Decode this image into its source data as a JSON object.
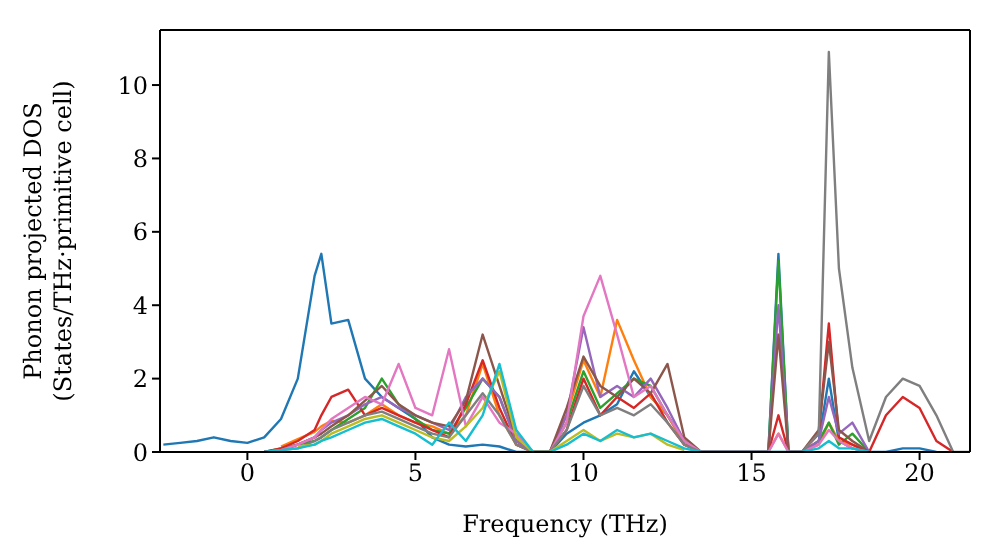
{
  "chart_data": {
    "type": "line",
    "xlabel": "Frequency (THz)",
    "ylabel": "Phonon projected DOS\n(States/THz·primitive cell)",
    "xlim": [
      -2.6,
      21.5
    ],
    "ylim": [
      0,
      11.5
    ],
    "xticks": [
      0,
      5,
      10,
      15,
      20
    ],
    "yticks": [
      0,
      2,
      4,
      6,
      8,
      10
    ],
    "grid": false,
    "legend": false,
    "marker": "none",
    "line_style": "solid",
    "x": [
      -2.5,
      -2,
      -1.5,
      -1,
      -0.5,
      0,
      0.5,
      1,
      1.5,
      2,
      2.2,
      2.5,
      3,
      3.5,
      4,
      4.5,
      5,
      5.5,
      6,
      6.5,
      7,
      7.5,
      8,
      8.5,
      9,
      9.5,
      10,
      10.5,
      11,
      11.5,
      12,
      12.5,
      13,
      13.5,
      14,
      14.5,
      15,
      15.5,
      15.8,
      16.1,
      16.5,
      17,
      17.3,
      17.6,
      18,
      18.5,
      19,
      19.5,
      20,
      20.5,
      21,
      21.5
    ],
    "series": [
      {
        "color": "#1f77b4",
        "values": [
          0.2,
          0.25,
          0.3,
          0.4,
          0.3,
          0.25,
          0.4,
          0.9,
          2.0,
          4.8,
          5.4,
          3.5,
          3.6,
          2.0,
          1.5,
          1.2,
          0.9,
          0.4,
          0.2,
          0.15,
          0.2,
          0.15,
          0,
          0,
          0,
          0.5,
          0.8,
          1.0,
          1.3,
          2.2,
          1.5,
          1.0,
          0.3,
          0,
          0,
          0,
          0,
          0,
          5.4,
          0,
          0,
          0.3,
          2.0,
          0.3,
          0.1,
          0,
          0,
          0.1,
          0.1,
          0,
          null,
          null
        ]
      },
      {
        "color": "#ff7f0e",
        "values": [
          null,
          null,
          null,
          null,
          null,
          null,
          null,
          0.15,
          0.35,
          0.55,
          0.7,
          0.85,
          0.8,
          1.0,
          1.3,
          1.0,
          0.8,
          0.7,
          0.5,
          1.0,
          2.4,
          1.0,
          0.2,
          0,
          0,
          1.0,
          2.5,
          1.5,
          3.6,
          2.5,
          1.5,
          1.0,
          0.2,
          0,
          0,
          0,
          0,
          0,
          0.5,
          0,
          0,
          0.2,
          0.8,
          0.3,
          0.2,
          0,
          null,
          null,
          null,
          null,
          null,
          null
        ]
      },
      {
        "color": "#2ca02c",
        "values": [
          null,
          null,
          null,
          null,
          null,
          null,
          0,
          0.1,
          0.2,
          0.3,
          0.4,
          0.6,
          0.9,
          1.2,
          2.0,
          1.3,
          0.9,
          0.6,
          0.5,
          1.2,
          2.0,
          1.5,
          0.3,
          0,
          0,
          0.8,
          2.2,
          1.2,
          1.6,
          2.0,
          1.8,
          1.0,
          0.3,
          0,
          0,
          0,
          0,
          0,
          5.2,
          0,
          0,
          0.3,
          0.8,
          0.2,
          0.5,
          0,
          null,
          null,
          null,
          null,
          null,
          null
        ]
      },
      {
        "color": "#d62728",
        "values": [
          null,
          null,
          null,
          null,
          null,
          null,
          0,
          0.1,
          0.3,
          0.6,
          1.0,
          1.5,
          1.7,
          1.0,
          1.2,
          1.0,
          0.8,
          0.6,
          0.4,
          1.3,
          2.5,
          1.2,
          0.2,
          0,
          0,
          0.6,
          2.0,
          1.0,
          1.5,
          1.2,
          1.6,
          0.8,
          0.2,
          0,
          0,
          0,
          0,
          0,
          1.0,
          0,
          0,
          0.5,
          3.5,
          0.4,
          0.2,
          0,
          1.0,
          1.5,
          1.2,
          0.3,
          0,
          null
        ]
      },
      {
        "color": "#9467bd",
        "values": [
          null,
          null,
          null,
          null,
          null,
          null,
          0,
          0.05,
          0.2,
          0.4,
          0.6,
          0.8,
          1.0,
          1.3,
          1.5,
          1.2,
          1.0,
          0.8,
          0.6,
          1.5,
          2.0,
          1.5,
          0.3,
          0,
          0,
          1.0,
          3.4,
          1.5,
          1.8,
          1.5,
          2.0,
          1.2,
          0.3,
          0,
          0,
          0,
          0,
          0,
          4.0,
          0,
          0,
          0.3,
          1.5,
          0.5,
          0.8,
          0,
          null,
          null,
          null,
          null,
          null,
          null
        ]
      },
      {
        "color": "#8c564b",
        "values": [
          null,
          null,
          null,
          null,
          null,
          null,
          0,
          0.05,
          0.2,
          0.4,
          0.5,
          0.7,
          1.0,
          1.4,
          1.8,
          1.3,
          1.0,
          0.8,
          0.7,
          1.4,
          3.2,
          1.8,
          0.4,
          0,
          0,
          1.2,
          2.6,
          1.8,
          1.5,
          2.0,
          1.6,
          2.4,
          0.4,
          0,
          0,
          0,
          0,
          0,
          3.2,
          0,
          0,
          0.6,
          3.0,
          0.6,
          0.3,
          0,
          null,
          null,
          null,
          null,
          null,
          null
        ]
      },
      {
        "color": "#e377c2",
        "values": [
          null,
          null,
          null,
          null,
          null,
          null,
          0,
          0.05,
          0.2,
          0.4,
          0.6,
          0.9,
          1.2,
          1.5,
          1.3,
          2.4,
          1.2,
          1.0,
          2.8,
          0.7,
          1.5,
          0.8,
          0.5,
          0,
          0,
          0.8,
          3.7,
          4.8,
          3.2,
          1.5,
          1.8,
          1.0,
          0.3,
          0,
          0,
          0,
          0,
          0,
          0.5,
          0,
          0,
          0.2,
          0.6,
          0.3,
          0.1,
          0,
          null,
          null,
          null,
          null,
          null,
          null
        ]
      },
      {
        "color": "#7f7f7f",
        "values": [
          null,
          null,
          null,
          null,
          null,
          null,
          0,
          0.05,
          0.1,
          0.3,
          0.4,
          0.6,
          0.8,
          1.0,
          1.1,
          0.9,
          0.7,
          0.5,
          0.4,
          1.0,
          1.6,
          1.0,
          0.2,
          0,
          0,
          0.6,
          1.8,
          1.0,
          1.2,
          1.0,
          1.3,
          0.8,
          0.2,
          0,
          0,
          0,
          0,
          0,
          0,
          0,
          0,
          0.5,
          10.9,
          5.0,
          2.3,
          0.3,
          1.5,
          2.0,
          1.8,
          1.0,
          0,
          0
        ]
      },
      {
        "color": "#bcbd22",
        "values": [
          null,
          null,
          null,
          null,
          null,
          null,
          null,
          null,
          0.15,
          0.2,
          0.3,
          0.5,
          0.7,
          0.9,
          1.0,
          0.8,
          0.6,
          0.4,
          0.3,
          0.7,
          1.2,
          2.2,
          0.4,
          0,
          0,
          0.3,
          0.6,
          0.3,
          0.5,
          0.4,
          0.5,
          0.2,
          0.05,
          null,
          null,
          null,
          null,
          null,
          null,
          null,
          null,
          null,
          null,
          null,
          null,
          null,
          null,
          null,
          null,
          null,
          null,
          null
        ]
      },
      {
        "color": "#17becf",
        "values": [
          null,
          null,
          null,
          null,
          null,
          null,
          0,
          0.05,
          0.1,
          0.2,
          0.3,
          0.4,
          0.6,
          0.8,
          0.9,
          0.7,
          0.5,
          0.2,
          0.8,
          0.3,
          1.0,
          2.4,
          0.6,
          0,
          0,
          0.2,
          0.5,
          0.3,
          0.6,
          0.4,
          0.5,
          0.3,
          0.1,
          0,
          0,
          0,
          0,
          0,
          0,
          0,
          0,
          0.1,
          0.3,
          0.1,
          0.1,
          0,
          null,
          null,
          null,
          null,
          null,
          null
        ]
      }
    ]
  }
}
